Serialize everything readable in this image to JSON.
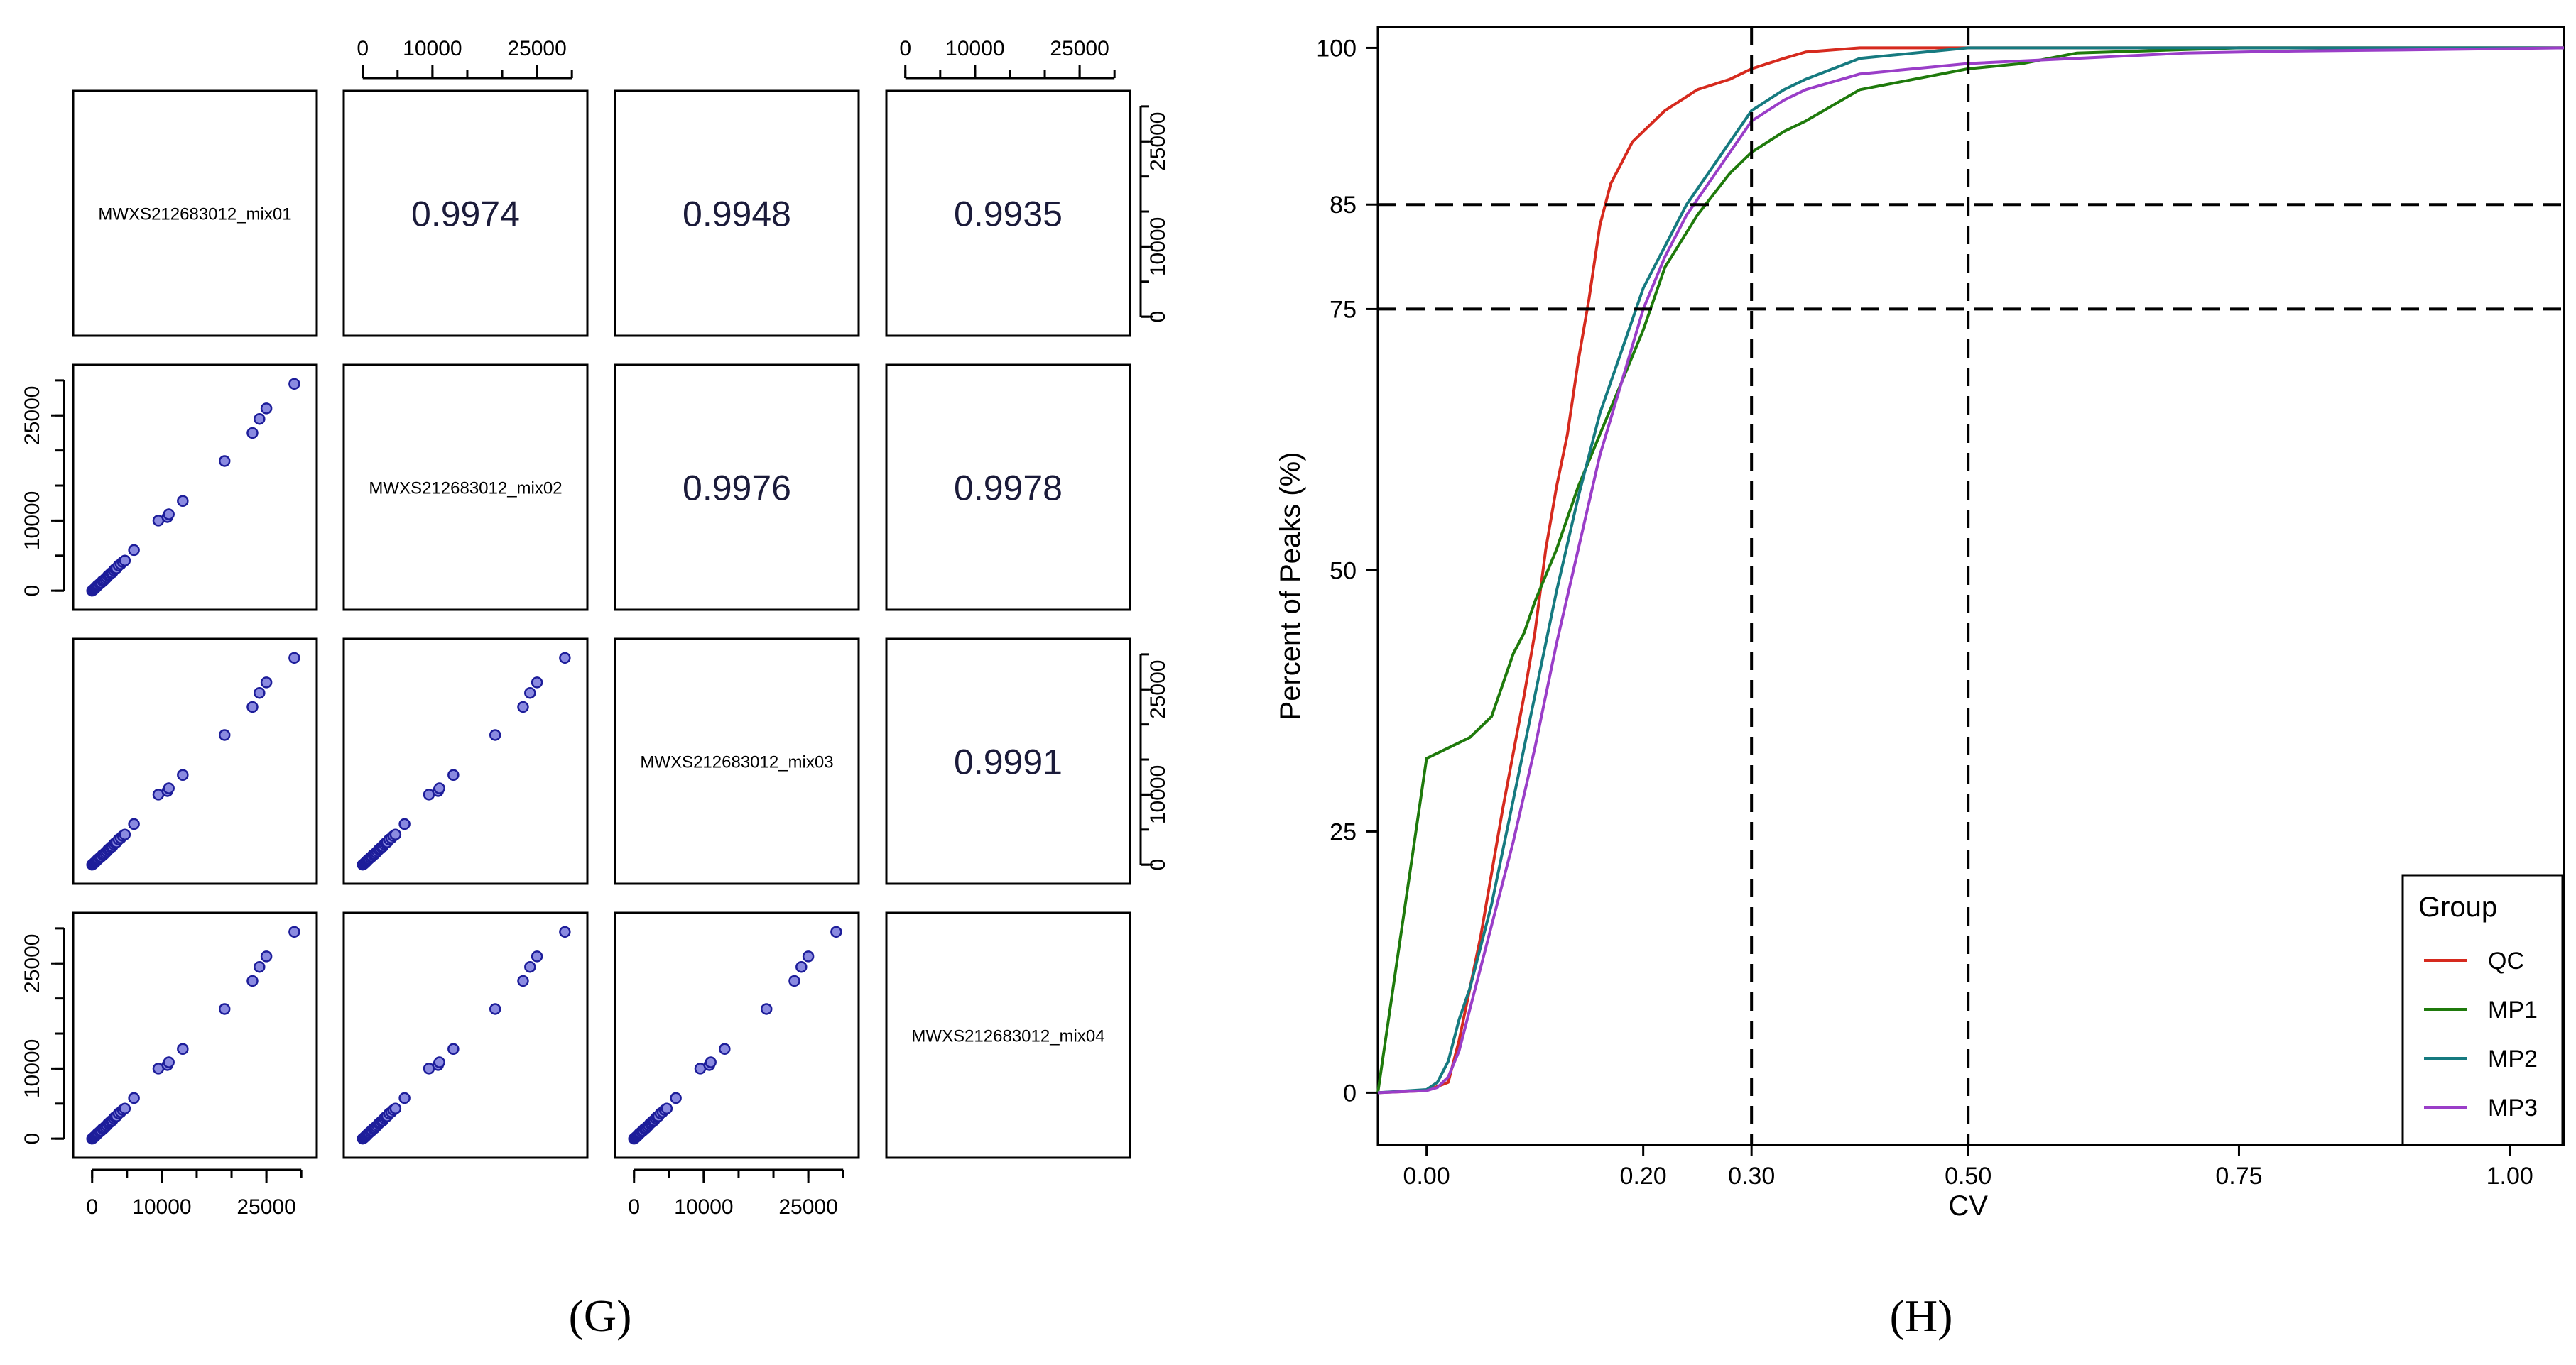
{
  "chart_data": [
    {
      "panel": "G",
      "type": "scatter",
      "title": "",
      "samples": [
        "MWXS212683012_mix01",
        "MWXS212683012_mix02",
        "MWXS212683012_mix03",
        "MWXS212683012_mix04"
      ],
      "axis_range": [
        -1500,
        31000
      ],
      "tick_values": [
        0,
        10000,
        25000
      ],
      "tick_labels": [
        "0",
        "10000",
        "25000"
      ],
      "correlations": [
        {
          "row": 0,
          "col": 1,
          "label": "0.9974"
        },
        {
          "row": 0,
          "col": 2,
          "label": "0.9948"
        },
        {
          "row": 0,
          "col": 3,
          "label": "0.9935"
        },
        {
          "row": 1,
          "col": 2,
          "label": "0.9976"
        },
        {
          "row": 1,
          "col": 3,
          "label": "0.9978"
        },
        {
          "row": 2,
          "col": 3,
          "label": "0.9991"
        }
      ],
      "scatter_points": [
        [
          0,
          0
        ],
        [
          150,
          100
        ],
        [
          300,
          250
        ],
        [
          450,
          380
        ],
        [
          600,
          520
        ],
        [
          750,
          700
        ],
        [
          900,
          820
        ],
        [
          1100,
          1000
        ],
        [
          1300,
          1150
        ],
        [
          1500,
          1400
        ],
        [
          1700,
          1500
        ],
        [
          1900,
          1700
        ],
        [
          2100,
          1900
        ],
        [
          2300,
          2150
        ],
        [
          2500,
          2300
        ],
        [
          2700,
          2500
        ],
        [
          2900,
          2600
        ],
        [
          3100,
          2900
        ],
        [
          3300,
          3100
        ],
        [
          3500,
          3200
        ],
        [
          3800,
          3600
        ],
        [
          4100,
          3800
        ],
        [
          4400,
          4100
        ],
        [
          4700,
          4300
        ],
        [
          6000,
          5800
        ],
        [
          9500,
          10000
        ],
        [
          10800,
          10500
        ],
        [
          11000,
          10900
        ],
        [
          13000,
          12800
        ],
        [
          19000,
          18500
        ],
        [
          23000,
          22500
        ],
        [
          24000,
          24500
        ],
        [
          25000,
          26000
        ],
        [
          29000,
          29500
        ]
      ],
      "caption": "(G)"
    },
    {
      "panel": "H",
      "type": "line",
      "title": "",
      "xlabel": "CV",
      "ylabel": "Percent of Peaks (%)",
      "xlim": [
        -0.045,
        1.05
      ],
      "ylim": [
        -5,
        102
      ],
      "x_ticks": [
        0.0,
        0.2,
        0.3,
        0.5,
        0.75,
        1.0
      ],
      "x_tick_labels": [
        "0.00",
        "0.20",
        "0.30",
        "0.50",
        "0.75",
        "1.00"
      ],
      "y_ticks": [
        0,
        25,
        50,
        75,
        85,
        100
      ],
      "y_tick_labels": [
        "0",
        "25",
        "50",
        "75",
        "85",
        "100"
      ],
      "vlines": [
        0.3,
        0.5
      ],
      "hlines": [
        75,
        85
      ],
      "legend": {
        "title": "Group",
        "position": "bottom-right"
      },
      "series": [
        {
          "name": "QC",
          "color": "#d62a1e",
          "x": [
            -0.045,
            0.0,
            0.02,
            0.03,
            0.05,
            0.07,
            0.09,
            0.1,
            0.11,
            0.12,
            0.13,
            0.14,
            0.15,
            0.16,
            0.17,
            0.18,
            0.19,
            0.2,
            0.22,
            0.25,
            0.28,
            0.3,
            0.33,
            0.35,
            0.4,
            0.5,
            0.6,
            1.05
          ],
          "y": [
            0,
            0.2,
            1,
            5,
            15,
            27,
            38,
            44,
            52,
            58,
            63,
            70,
            76,
            83,
            87,
            89,
            91,
            92,
            94,
            96,
            97,
            98,
            99,
            99.6,
            100,
            100,
            100,
            100
          ]
        },
        {
          "name": "MP1",
          "color": "#1f7a0c",
          "x": [
            -0.045,
            0.0,
            0.02,
            0.04,
            0.06,
            0.07,
            0.08,
            0.09,
            0.1,
            0.12,
            0.14,
            0.16,
            0.18,
            0.2,
            0.22,
            0.25,
            0.28,
            0.3,
            0.33,
            0.35,
            0.4,
            0.5,
            0.55,
            0.6,
            0.75,
            1.05
          ],
          "y": [
            0,
            32,
            33,
            34,
            36,
            39,
            42,
            44,
            47,
            52,
            58,
            63,
            68,
            73,
            79,
            84,
            88,
            90,
            92,
            93,
            96,
            98,
            98.5,
            99.5,
            100,
            100
          ]
        },
        {
          "name": "MP2",
          "color": "#167a80",
          "x": [
            -0.045,
            0.0,
            0.01,
            0.02,
            0.03,
            0.04,
            0.06,
            0.08,
            0.1,
            0.12,
            0.14,
            0.16,
            0.18,
            0.2,
            0.22,
            0.24,
            0.26,
            0.28,
            0.3,
            0.33,
            0.35,
            0.4,
            0.5,
            0.6,
            1.05
          ],
          "y": [
            0,
            0.3,
            1,
            3,
            7,
            10,
            18,
            28,
            38,
            48,
            57,
            65,
            71,
            77,
            81,
            85,
            88,
            91,
            94,
            96,
            97,
            99,
            100,
            100,
            100
          ]
        },
        {
          "name": "MP3",
          "color": "#9a3ec8",
          "x": [
            -0.045,
            0.0,
            0.01,
            0.02,
            0.03,
            0.04,
            0.06,
            0.08,
            0.1,
            0.12,
            0.14,
            0.16,
            0.18,
            0.2,
            0.22,
            0.24,
            0.26,
            0.28,
            0.3,
            0.33,
            0.35,
            0.4,
            0.5,
            0.6,
            0.7,
            0.8,
            0.9,
            1.05
          ],
          "y": [
            0,
            0.2,
            0.5,
            1.5,
            4,
            8,
            16,
            24,
            33,
            43,
            52,
            61,
            68,
            75,
            80,
            84,
            87,
            90,
            93,
            95,
            96,
            97.5,
            98.5,
            99,
            99.5,
            99.7,
            99.8,
            100
          ]
        }
      ],
      "caption": "(H)"
    }
  ]
}
